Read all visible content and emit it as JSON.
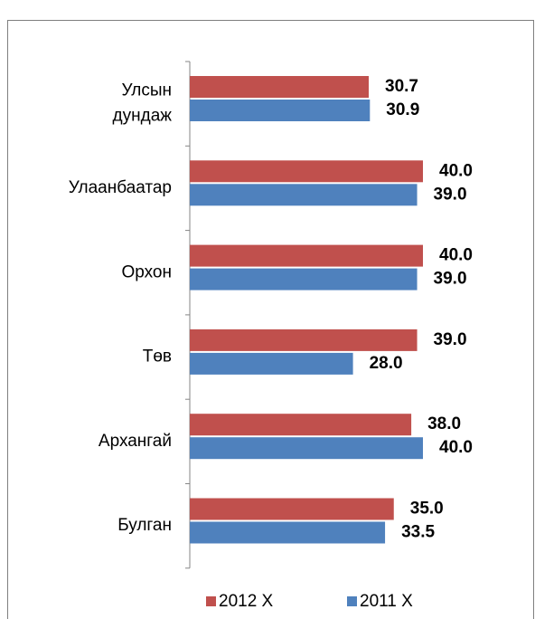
{
  "chart_data": {
    "type": "bar",
    "orientation": "horizontal",
    "categories": [
      "Улсын дундаж",
      "Улаанбаатар",
      "Орхон",
      "Төв",
      "Архангай",
      "Булган"
    ],
    "series": [
      {
        "name": "2012 Х",
        "color": "#c0504d",
        "values": [
          30.7,
          40.0,
          40.0,
          39.0,
          38.0,
          35.0
        ],
        "value_labels": [
          "30.7",
          "40.0",
          "40.0",
          "39.0",
          "38.0",
          "35.0"
        ]
      },
      {
        "name": "2011 Х",
        "color": "#4f81bd",
        "values": [
          30.9,
          39.0,
          39.0,
          28.0,
          40.0,
          33.5
        ],
        "value_labels": [
          "30.9",
          "39.0",
          "39.0",
          "28.0",
          "40.0",
          "33.5"
        ]
      }
    ],
    "legend": "bottom"
  }
}
